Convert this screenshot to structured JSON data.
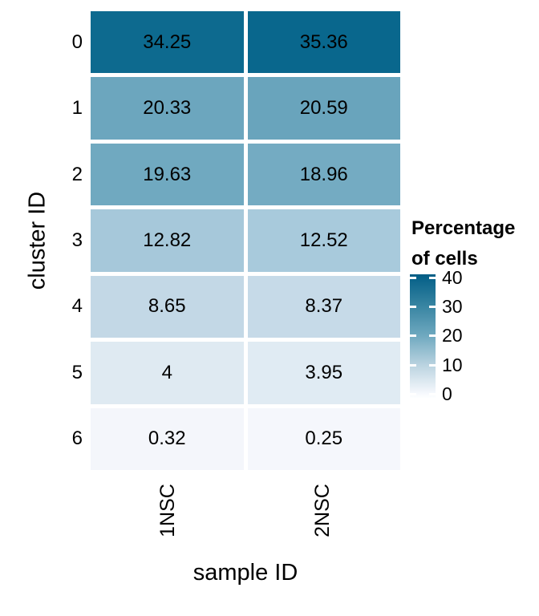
{
  "chart_data": {
    "type": "heatmap",
    "title": "",
    "xlabel": "sample ID",
    "ylabel": "cluster ID",
    "x_categories": [
      "1NSC",
      "2NSC"
    ],
    "y_categories": [
      "0",
      "1",
      "2",
      "3",
      "4",
      "5",
      "6"
    ],
    "values": [
      [
        34.25,
        35.36
      ],
      [
        20.33,
        20.59
      ],
      [
        19.63,
        18.96
      ],
      [
        12.82,
        12.52
      ],
      [
        8.65,
        8.37
      ],
      [
        4,
        3.95
      ],
      [
        0.32,
        0.25
      ]
    ],
    "cell_labels": [
      [
        "34.25",
        "35.36"
      ],
      [
        "20.33",
        "20.59"
      ],
      [
        "19.63",
        "18.96"
      ],
      [
        "12.82",
        "12.52"
      ],
      [
        "8.65",
        "8.37"
      ],
      [
        "4",
        "3.95"
      ],
      [
        "0.32",
        "0.25"
      ]
    ],
    "cell_colors": [
      [
        "#0d6a8f",
        "#09678d"
      ],
      [
        "#6ca6be",
        "#69a4bc"
      ],
      [
        "#70a9c0",
        "#74abc2"
      ],
      [
        "#a6c8da",
        "#a8cadc"
      ],
      [
        "#c3d8e6",
        "#c6dae8"
      ],
      [
        "#dfeaf2",
        "#e0ebf3"
      ],
      [
        "#f4f6fb",
        "#f5f7fc"
      ]
    ],
    "grid": false,
    "background_color": "#ffffff",
    "text_color": "#000000",
    "legend": {
      "position": "right",
      "title_lines": [
        "Percentage",
        "of cells"
      ],
      "tick_labels": [
        "40",
        "30",
        "20",
        "10",
        "0"
      ],
      "tick_positions_pct": [
        2.6,
        26.6,
        49.4,
        73.4,
        96.8
      ],
      "gradient_stops": [
        {
          "pos": 0,
          "color": "#035d84"
        },
        {
          "pos": 2.6,
          "color": "#076189"
        },
        {
          "pos": 26.6,
          "color": "#3a86a3"
        },
        {
          "pos": 49.4,
          "color": "#6ea8bf"
        },
        {
          "pos": 73.4,
          "color": "#bad3e0"
        },
        {
          "pos": 96.8,
          "color": "#f7f9fd"
        },
        {
          "pos": 100,
          "color": "#fdfeff"
        }
      ]
    }
  }
}
